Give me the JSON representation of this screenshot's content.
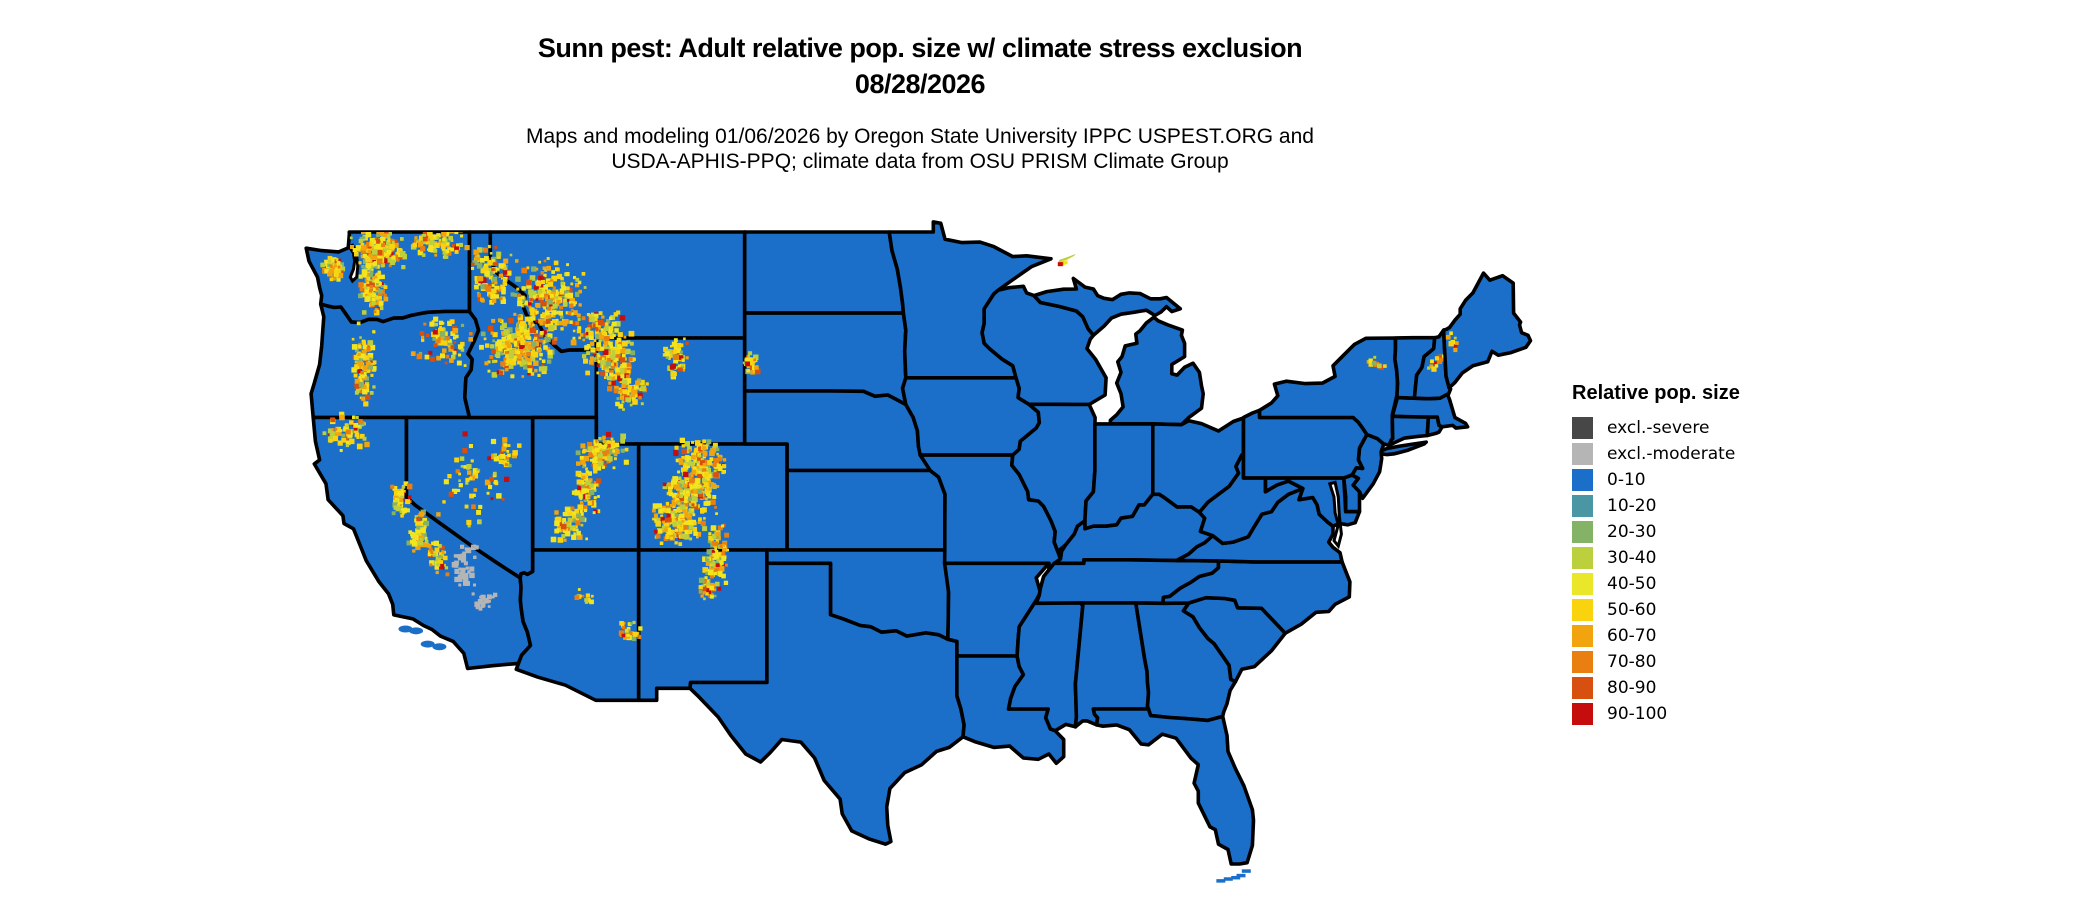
{
  "title": {
    "line1": "Sunn pest: Adult relative pop. size w/ climate stress exclusion",
    "line2": "08/28/2026"
  },
  "subtitle": {
    "line1": "Maps and modeling 01/06/2026 by Oregon State University IPPC USPEST.ORG and",
    "line2": "USDA-APHIS-PPQ; climate data from OSU PRISM Climate Group"
  },
  "legend": {
    "title": "Relative pop. size",
    "items": [
      {
        "label": "excl.-severe",
        "color": "#474747"
      },
      {
        "label": "excl.-moderate",
        "color": "#b5b5b5"
      },
      {
        "label": "0-10",
        "color": "#1b6fc8"
      },
      {
        "label": "10-20",
        "color": "#4a96a5"
      },
      {
        "label": "20-30",
        "color": "#84b266"
      },
      {
        "label": "30-40",
        "color": "#bccf3d"
      },
      {
        "label": "40-50",
        "color": "#eae629"
      },
      {
        "label": "50-60",
        "color": "#f8d30e"
      },
      {
        "label": "60-70",
        "color": "#f2a40f"
      },
      {
        "label": "70-80",
        "color": "#e87f10"
      },
      {
        "label": "80-90",
        "color": "#d8500f"
      },
      {
        "label": "90-100",
        "color": "#c60d0d"
      }
    ]
  },
  "map": {
    "base_color": "#1b6fc8",
    "border_color": "#000000",
    "water_color": "#ffffff",
    "excl_moderate_color": "#b5b5b5",
    "warm_palette": [
      {
        "color": "#f2e51e",
        "weight": 25
      },
      {
        "color": "#f8d30e",
        "weight": 20
      },
      {
        "color": "#bccf3d",
        "weight": 14
      },
      {
        "color": "#f2a40f",
        "weight": 15
      },
      {
        "color": "#e87f10",
        "weight": 10
      },
      {
        "color": "#84b266",
        "weight": 6
      },
      {
        "color": "#d8500f",
        "weight": 6
      },
      {
        "color": "#c60d0d",
        "weight": 4
      }
    ],
    "hotspots": [
      {
        "name": "wa-north-cascades",
        "lon": -121.3,
        "lat": 48.3,
        "dlon": 1.0,
        "dlat": 0.55,
        "n": 180
      },
      {
        "name": "wa-south-cascades",
        "lon": -121.6,
        "lat": 46.9,
        "dlon": 0.55,
        "dlat": 0.8,
        "n": 130
      },
      {
        "name": "olympics",
        "lon": -123.5,
        "lat": 47.6,
        "dlon": 0.45,
        "dlat": 0.35,
        "n": 60
      },
      {
        "name": "ne-washington",
        "lon": -118.5,
        "lat": 48.6,
        "dlon": 1.1,
        "dlat": 0.5,
        "n": 90
      },
      {
        "name": "or-cascades",
        "lon": -122.0,
        "lat": 44.0,
        "dlon": 0.4,
        "dlat": 1.2,
        "n": 110
      },
      {
        "name": "or-blue-mtns",
        "lon": -118.3,
        "lat": 44.9,
        "dlon": 1.1,
        "dlat": 0.7,
        "n": 90
      },
      {
        "name": "id-panhandle",
        "lon": -115.9,
        "lat": 47.3,
        "dlon": 0.8,
        "dlat": 0.9,
        "n": 120
      },
      {
        "name": "id-central",
        "lon": -114.7,
        "lat": 44.7,
        "dlon": 1.3,
        "dlat": 0.9,
        "n": 260
      },
      {
        "name": "mt-west",
        "lon": -113.3,
        "lat": 46.4,
        "dlon": 1.3,
        "dlat": 1.2,
        "n": 260
      },
      {
        "name": "mt-south",
        "lon": -110.8,
        "lat": 45.3,
        "dlon": 0.9,
        "dlat": 0.6,
        "n": 100
      },
      {
        "name": "yellowstone",
        "lon": -110.4,
        "lat": 44.2,
        "dlon": 0.9,
        "dlat": 0.7,
        "n": 150
      },
      {
        "name": "wind-river",
        "lon": -109.6,
        "lat": 42.9,
        "dlon": 0.7,
        "dlat": 0.5,
        "n": 70
      },
      {
        "name": "bighorn",
        "lon": -107.3,
        "lat": 44.3,
        "dlon": 0.45,
        "dlat": 0.6,
        "n": 60
      },
      {
        "name": "uinta-wasatch",
        "lon": -110.8,
        "lat": 40.7,
        "dlon": 0.9,
        "dlat": 0.5,
        "n": 110
      },
      {
        "name": "wasatch-south",
        "lon": -111.5,
        "lat": 39.3,
        "dlon": 0.5,
        "dlat": 0.8,
        "n": 80
      },
      {
        "name": "utah-plateaus",
        "lon": -112.3,
        "lat": 37.9,
        "dlon": 0.7,
        "dlat": 0.6,
        "n": 60
      },
      {
        "name": "co-north-rockies",
        "lon": -106.2,
        "lat": 40.3,
        "dlon": 0.9,
        "dlat": 0.7,
        "n": 170
      },
      {
        "name": "co-central",
        "lon": -106.6,
        "lat": 39.1,
        "dlon": 1.0,
        "dlat": 0.6,
        "n": 180
      },
      {
        "name": "san-juan",
        "lon": -107.3,
        "lat": 38.0,
        "dlon": 0.9,
        "dlat": 0.6,
        "n": 150
      },
      {
        "name": "sangre-de-cristo",
        "lon": -105.4,
        "lat": 36.9,
        "dlon": 0.45,
        "dlat": 1.0,
        "n": 110
      },
      {
        "name": "nm-south-ranges",
        "lon": -105.7,
        "lat": 35.6,
        "dlon": 0.4,
        "dlat": 0.5,
        "n": 30
      },
      {
        "name": "sierra-north",
        "lon": -120.3,
        "lat": 38.9,
        "dlon": 0.35,
        "dlat": 0.5,
        "n": 50
      },
      {
        "name": "sierra-central",
        "lon": -119.4,
        "lat": 37.7,
        "dlon": 0.4,
        "dlat": 0.6,
        "n": 60
      },
      {
        "name": "sierra-south",
        "lon": -118.5,
        "lat": 36.7,
        "dlon": 0.35,
        "dlat": 0.5,
        "n": 40
      },
      {
        "name": "klamath-shasta",
        "lon": -122.9,
        "lat": 41.4,
        "dlon": 0.8,
        "dlat": 0.55,
        "n": 70
      },
      {
        "name": "nv-ranges",
        "lon": -116.8,
        "lat": 39.5,
        "dlon": 1.3,
        "dlat": 1.5,
        "n": 60
      },
      {
        "name": "ruby-mtns",
        "lon": -115.3,
        "lat": 40.5,
        "dlon": 0.5,
        "dlat": 0.5,
        "n": 25
      },
      {
        "name": "az-white-mtns",
        "lon": -109.6,
        "lat": 33.9,
        "dlon": 0.5,
        "dlat": 0.35,
        "n": 25
      },
      {
        "name": "az-flagstaff",
        "lon": -111.6,
        "lat": 35.25,
        "dlon": 0.3,
        "dlat": 0.2,
        "n": 12
      },
      {
        "name": "black-hills",
        "lon": -103.7,
        "lat": 44.0,
        "dlon": 0.35,
        "dlat": 0.4,
        "n": 30
      },
      {
        "name": "adirondacks",
        "lon": -74.3,
        "lat": 43.95,
        "dlon": 0.35,
        "dlat": 0.25,
        "n": 10
      },
      {
        "name": "white-mtns-nh",
        "lon": -71.4,
        "lat": 44.15,
        "dlon": 0.3,
        "dlat": 0.25,
        "n": 12
      },
      {
        "name": "maine-west",
        "lon": -70.6,
        "lat": 44.9,
        "dlon": 0.25,
        "dlat": 0.3,
        "n": 8
      }
    ],
    "exclusion_patches": [
      {
        "name": "death-valley-gray",
        "lon": -117.2,
        "lat": 36.3,
        "dlon": 0.45,
        "dlat": 0.7,
        "n": 40
      },
      {
        "name": "mojave-gray",
        "lon": -116.3,
        "lat": 35.1,
        "dlon": 0.4,
        "dlat": 0.3,
        "n": 15
      }
    ],
    "islands": {
      "channel_islands": [
        {
          "lon": -120.05,
          "lat": 34.02
        },
        {
          "lon": -119.55,
          "lat": 33.95
        },
        {
          "lon": -118.45,
          "lat": 33.35
        },
        {
          "lon": -119.0,
          "lat": 33.45
        }
      ],
      "florida_keys": [
        {
          "lon": -80.6,
          "lat": 24.95
        },
        {
          "lon": -80.85,
          "lat": 24.78
        },
        {
          "lon": -81.1,
          "lat": 24.7
        },
        {
          "lon": -81.45,
          "lat": 24.65
        },
        {
          "lon": -81.8,
          "lat": 24.58
        }
      ],
      "isle_royale_colors": [
        "#bccf3d",
        "#f2e51e",
        "#e87f10",
        "#c60d0d"
      ]
    }
  }
}
